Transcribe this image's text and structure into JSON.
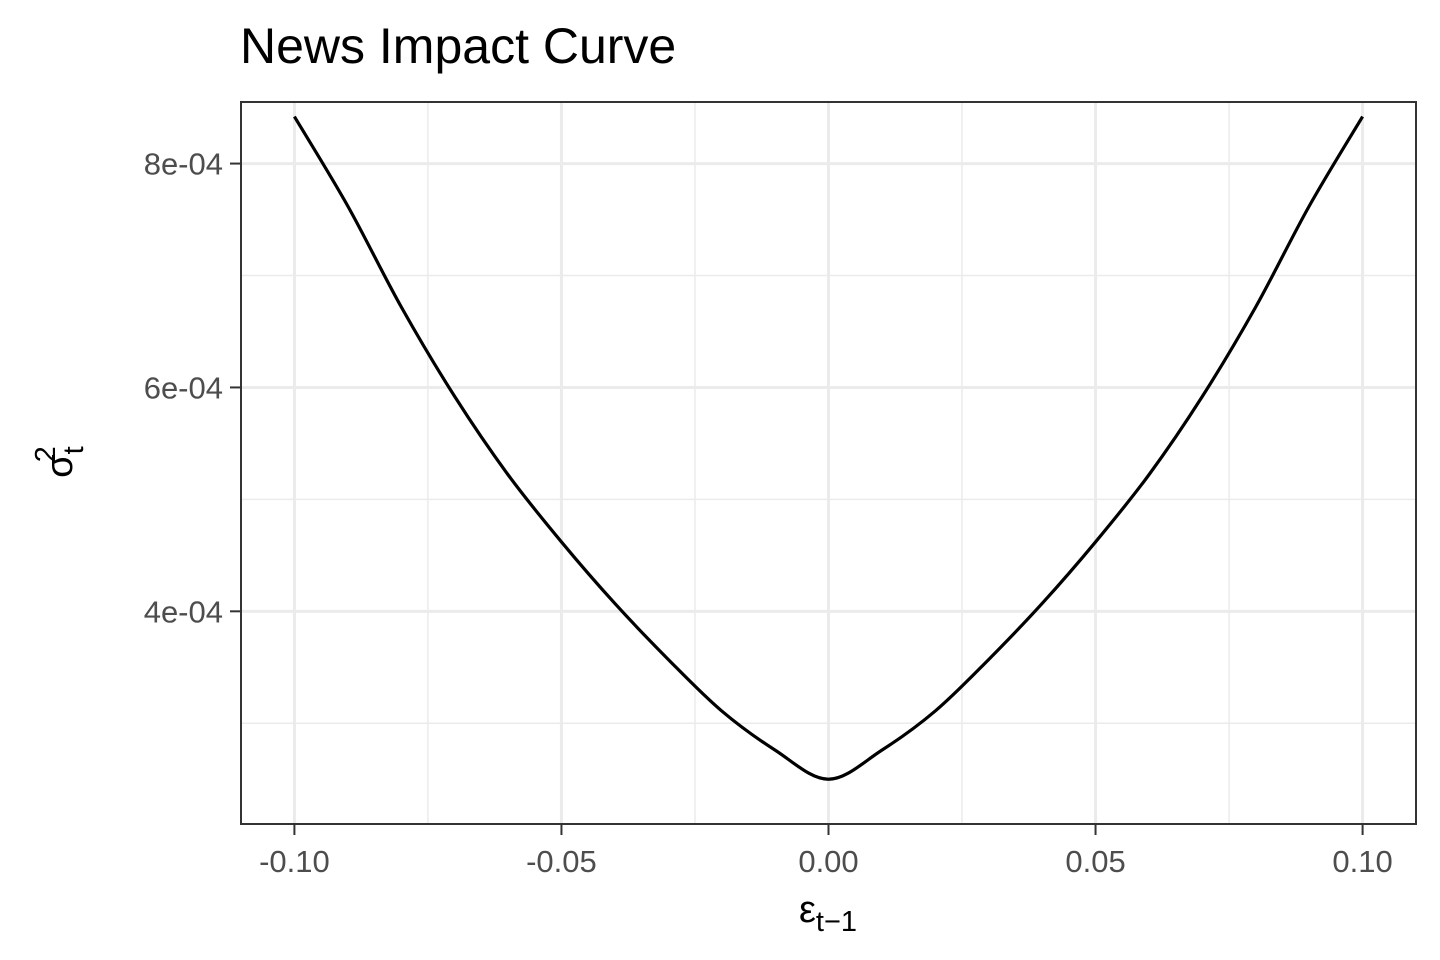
{
  "chart_data": {
    "type": "line",
    "title": "News Impact Curve",
    "xlabel": {
      "base": "ε",
      "sub": "t−1"
    },
    "ylabel": {
      "base": "σ",
      "sub": "t",
      "sup": "2"
    },
    "xlim": [
      -0.11,
      0.11
    ],
    "ylim": [
      0.00021,
      0.000855
    ],
    "x_ticks": [
      -0.1,
      -0.05,
      0.0,
      0.05,
      0.1
    ],
    "x_tick_labels": [
      "-0.10",
      "-0.05",
      "0.00",
      "0.05",
      "0.10"
    ],
    "y_ticks": [
      0.0004,
      0.0006,
      0.0008
    ],
    "y_tick_labels": [
      "4e-04",
      "6e-04",
      "8e-04"
    ],
    "grid": true,
    "series": [
      {
        "color": "#000000",
        "x": [
          -0.1,
          -0.09,
          -0.08,
          -0.07,
          -0.06,
          -0.05,
          -0.04,
          -0.03,
          -0.02,
          -0.01,
          0.0,
          0.01,
          0.02,
          0.03,
          0.04,
          0.05,
          0.06,
          0.07,
          0.08,
          0.09,
          0.1
        ],
        "y": [
          0.000842,
          0.000762,
          0.000672,
          0.000592,
          0.000522,
          0.000462,
          0.000407,
          0.000357,
          0.000311,
          0.000276,
          0.00025,
          0.000276,
          0.000311,
          0.000357,
          0.000407,
          0.000462,
          0.000522,
          0.000592,
          0.000672,
          0.000762,
          0.000842
        ]
      }
    ]
  },
  "colors": {
    "background": "#ffffff",
    "grid_major": "#ebebeb",
    "grid_minor": "#ebebeb",
    "panel_border": "#333333",
    "tick_text": "#4d4d4d",
    "line": "#000000"
  }
}
